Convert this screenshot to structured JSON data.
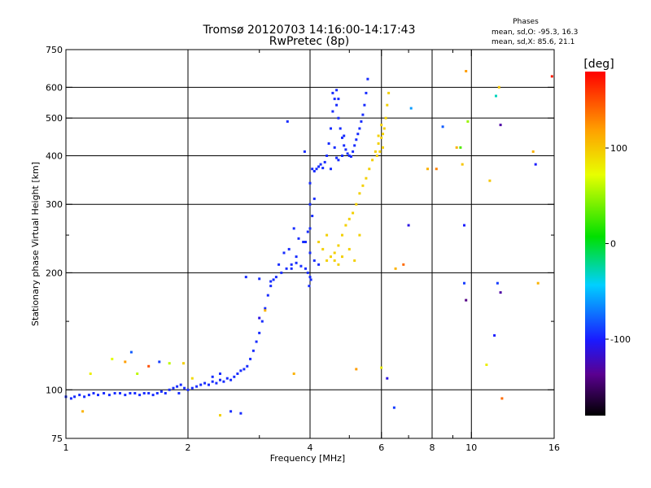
{
  "chart_data": {
    "type": "scatter",
    "title": "Tromsø 20120703 14:16:00-14:17:43",
    "subtitle": "RwPretec (8p)",
    "phases": {
      "heading": "Phases",
      "line1": "mean, sd,O: -95.3, 16.3",
      "line2": "mean, sd,X:  85.6, 21.1"
    },
    "xlabel": "Frequency [MHz]",
    "ylabel": "Stationary phase Virtual Height [km]",
    "xscale": "log",
    "yscale": "log",
    "xlim": [
      1,
      16
    ],
    "ylim": [
      75,
      750
    ],
    "x_ticks": [
      1,
      2,
      4,
      6,
      8,
      10,
      16
    ],
    "x_tick_labels": [
      "1",
      "2",
      "4",
      "6",
      "8",
      "10",
      "16"
    ],
    "x_minor_ticks": [
      3,
      5,
      7,
      9
    ],
    "x_gridlines": [
      2,
      4,
      6,
      8,
      10
    ],
    "y_ticks": [
      75,
      100,
      200,
      300,
      400,
      500,
      600,
      750
    ],
    "y_tick_labels": [
      "75",
      "100",
      "200",
      "300",
      "400",
      "500",
      "600",
      "750"
    ],
    "y_minor_ticks": [
      150,
      250
    ],
    "y_gridlines": [
      100,
      200,
      300,
      400,
      500,
      600
    ],
    "colorbar": {
      "label": "[deg]",
      "range": [
        -180,
        180
      ],
      "tick_values": [
        100,
        0,
        -100
      ],
      "tick_labels": [
        "100",
        "0",
        "-100"
      ]
    },
    "series": [
      {
        "name": "O-mode trace (blue)",
        "phase": -95,
        "points": [
          [
            1.0,
            96
          ],
          [
            1.03,
            95
          ],
          [
            1.05,
            96
          ],
          [
            1.08,
            97
          ],
          [
            1.11,
            96
          ],
          [
            1.14,
            97
          ],
          [
            1.17,
            98
          ],
          [
            1.2,
            97
          ],
          [
            1.24,
            98
          ],
          [
            1.28,
            97
          ],
          [
            1.32,
            98
          ],
          [
            1.36,
            98
          ],
          [
            1.4,
            97
          ],
          [
            1.44,
            98
          ],
          [
            1.48,
            98
          ],
          [
            1.52,
            97
          ],
          [
            1.56,
            98
          ],
          [
            1.6,
            98
          ],
          [
            1.64,
            97
          ],
          [
            1.68,
            98
          ],
          [
            1.72,
            99
          ],
          [
            1.76,
            98
          ],
          [
            1.8,
            100
          ],
          [
            1.84,
            101
          ],
          [
            1.88,
            102
          ],
          [
            1.92,
            103
          ],
          [
            1.96,
            101
          ],
          [
            2.0,
            100
          ],
          [
            2.05,
            101
          ],
          [
            2.1,
            102
          ],
          [
            2.15,
            103
          ],
          [
            2.2,
            104
          ],
          [
            2.25,
            103
          ],
          [
            2.3,
            105
          ],
          [
            2.35,
            104
          ],
          [
            2.4,
            106
          ],
          [
            2.45,
            105
          ],
          [
            2.5,
            107
          ],
          [
            2.55,
            106
          ],
          [
            2.6,
            108
          ],
          [
            2.65,
            110
          ],
          [
            2.7,
            112
          ],
          [
            2.75,
            113
          ],
          [
            2.8,
            115
          ],
          [
            2.85,
            120
          ],
          [
            2.9,
            126
          ],
          [
            2.95,
            133
          ],
          [
            3.0,
            140
          ],
          [
            3.05,
            150
          ],
          [
            3.1,
            162
          ],
          [
            3.15,
            175
          ],
          [
            3.2,
            185
          ],
          [
            3.25,
            192
          ],
          [
            3.3,
            195
          ],
          [
            3.4,
            200
          ],
          [
            3.5,
            205
          ],
          [
            3.6,
            210
          ],
          [
            3.7,
            212
          ],
          [
            3.8,
            208
          ],
          [
            3.9,
            205
          ],
          [
            3.95,
            200
          ],
          [
            4.0,
            195
          ],
          [
            4.0,
            225
          ],
          [
            4.0,
            260
          ],
          [
            4.0,
            300
          ],
          [
            4.0,
            340
          ],
          [
            4.05,
            370
          ],
          [
            4.1,
            365
          ],
          [
            4.15,
            370
          ],
          [
            4.2,
            375
          ],
          [
            4.25,
            380
          ],
          [
            4.3,
            372
          ],
          [
            4.35,
            385
          ],
          [
            4.4,
            400
          ],
          [
            4.45,
            430
          ],
          [
            4.5,
            470
          ],
          [
            4.55,
            520
          ],
          [
            4.6,
            560
          ],
          [
            4.65,
            540
          ],
          [
            4.7,
            500
          ],
          [
            4.75,
            470
          ],
          [
            4.8,
            445
          ],
          [
            4.85,
            425
          ],
          [
            4.9,
            415
          ],
          [
            4.95,
            405
          ],
          [
            5.0,
            400
          ],
          [
            5.05,
            398
          ],
          [
            5.1,
            410
          ],
          [
            5.15,
            425
          ],
          [
            5.2,
            440
          ],
          [
            5.25,
            455
          ],
          [
            5.3,
            470
          ],
          [
            5.35,
            490
          ],
          [
            5.4,
            510
          ],
          [
            5.45,
            540
          ],
          [
            5.5,
            580
          ],
          [
            5.55,
            630
          ],
          [
            4.55,
            580
          ],
          [
            4.65,
            590
          ],
          [
            4.7,
            560
          ],
          [
            4.6,
            420
          ],
          [
            4.65,
            395
          ],
          [
            4.7,
            390
          ],
          [
            4.8,
            400
          ],
          [
            4.5,
            370
          ],
          [
            4.85,
            450
          ],
          [
            3.55,
            230
          ],
          [
            3.65,
            260
          ],
          [
            3.75,
            245
          ],
          [
            3.85,
            240
          ],
          [
            3.45,
            225
          ],
          [
            3.35,
            210
          ],
          [
            3.6,
            205
          ],
          [
            3.7,
            220
          ],
          [
            3.9,
            240
          ],
          [
            3.95,
            255
          ],
          [
            4.05,
            280
          ],
          [
            4.1,
            310
          ],
          [
            3.98,
            185
          ],
          [
            4.02,
            192
          ],
          [
            4.2,
            210
          ],
          [
            4.1,
            215
          ],
          [
            2.78,
            195
          ],
          [
            3.0,
            193
          ],
          [
            3.2,
            190
          ],
          [
            3.52,
            490
          ],
          [
            3.88,
            410
          ],
          [
            2.55,
            88
          ],
          [
            2.7,
            87
          ],
          [
            2.3,
            108
          ],
          [
            2.4,
            110
          ],
          [
            1.9,
            98
          ]
        ]
      },
      {
        "name": "X-mode trace (yellow)",
        "phase": 95,
        "points": [
          [
            4.4,
            215
          ],
          [
            4.5,
            220
          ],
          [
            4.6,
            225
          ],
          [
            4.7,
            235
          ],
          [
            4.8,
            250
          ],
          [
            4.9,
            265
          ],
          [
            5.0,
            275
          ],
          [
            5.1,
            285
          ],
          [
            5.2,
            300
          ],
          [
            5.3,
            320
          ],
          [
            5.4,
            335
          ],
          [
            5.5,
            350
          ],
          [
            5.6,
            370
          ],
          [
            5.7,
            390
          ],
          [
            5.8,
            410
          ],
          [
            5.9,
            430
          ],
          [
            6.0,
            445
          ],
          [
            6.05,
            455
          ],
          [
            6.1,
            470
          ],
          [
            6.15,
            500
          ],
          [
            6.2,
            540
          ],
          [
            6.25,
            580
          ],
          [
            5.85,
            400
          ],
          [
            5.95,
            410
          ],
          [
            6.05,
            420
          ],
          [
            5.9,
            450
          ],
          [
            6.0,
            480
          ],
          [
            4.6,
            215
          ],
          [
            4.8,
            220
          ],
          [
            5.0,
            230
          ],
          [
            4.7,
            210
          ],
          [
            4.3,
            230
          ],
          [
            4.2,
            240
          ],
          [
            4.4,
            250
          ],
          [
            5.15,
            215
          ],
          [
            5.3,
            250
          ]
        ]
      },
      {
        "name": "scattered echoes",
        "points": [
          [
            1.15,
            110,
            80
          ],
          [
            1.3,
            120,
            70
          ],
          [
            1.4,
            118,
            120
          ],
          [
            1.5,
            110,
            60
          ],
          [
            1.6,
            115,
            150
          ],
          [
            1.7,
            118,
            -90
          ],
          [
            1.8,
            117,
            60
          ],
          [
            1.95,
            117,
            95
          ],
          [
            1.1,
            88,
            110
          ],
          [
            1.45,
            125,
            -80
          ],
          [
            2.05,
            107,
            90
          ],
          [
            2.4,
            86,
            95
          ],
          [
            3.0,
            153,
            -110
          ],
          [
            3.1,
            160,
            110
          ],
          [
            3.65,
            110,
            110
          ],
          [
            5.2,
            113,
            120
          ],
          [
            6.0,
            114,
            80
          ],
          [
            6.2,
            107,
            -110
          ],
          [
            6.45,
            90,
            -90
          ],
          [
            7.0,
            265,
            -110
          ],
          [
            6.8,
            210,
            140
          ],
          [
            7.1,
            530,
            -60
          ],
          [
            7.8,
            370,
            110
          ],
          [
            8.2,
            370,
            130
          ],
          [
            8.5,
            475,
            -80
          ],
          [
            9.2,
            420,
            110
          ],
          [
            9.4,
            420,
            30
          ],
          [
            9.5,
            380,
            100
          ],
          [
            9.6,
            265,
            -100
          ],
          [
            9.7,
            660,
            120
          ],
          [
            9.8,
            490,
            50
          ],
          [
            10.9,
            116,
            80
          ],
          [
            11.1,
            345,
            100
          ],
          [
            11.5,
            570,
            -30
          ],
          [
            11.7,
            600,
            100
          ],
          [
            11.8,
            480,
            -130
          ],
          [
            11.9,
            95,
            140
          ],
          [
            11.6,
            188,
            -90
          ],
          [
            11.8,
            178,
            -130
          ],
          [
            11.4,
            138,
            -100
          ],
          [
            14.2,
            410,
            110
          ],
          [
            14.4,
            380,
            -100
          ],
          [
            14.6,
            188,
            110
          ],
          [
            15.8,
            640,
            170
          ],
          [
            9.6,
            188,
            -90
          ],
          [
            9.7,
            170,
            -140
          ],
          [
            6.5,
            205,
            110
          ]
        ]
      }
    ]
  }
}
